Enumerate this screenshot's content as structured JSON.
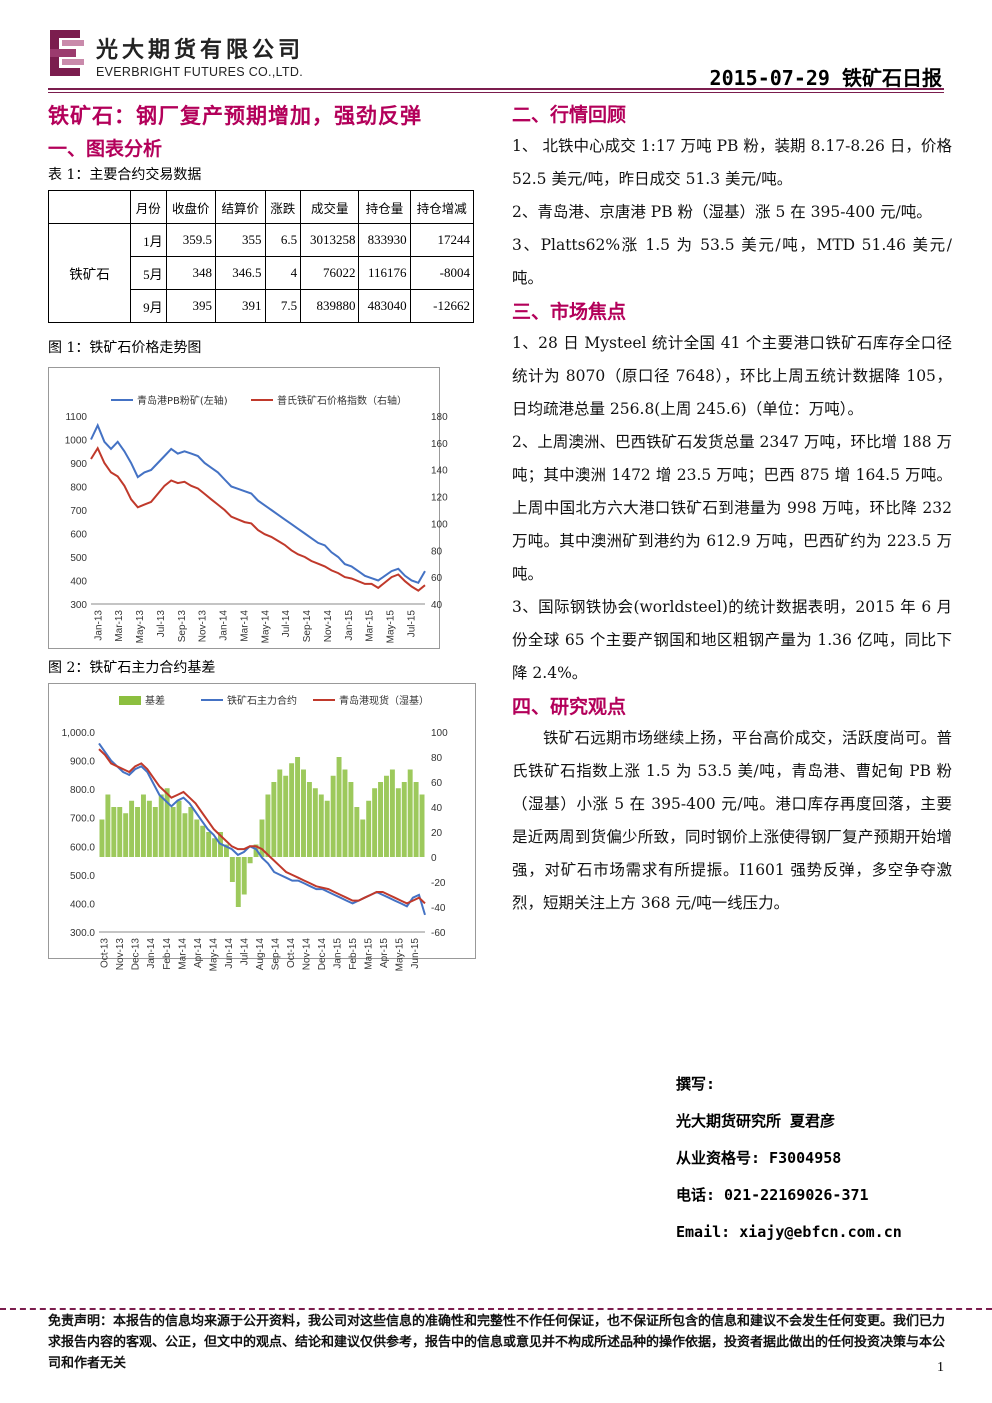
{
  "header": {
    "company_cn": "光大期货有限公司",
    "company_en": "EVERBRIGHT FUTURES CO.,LTD.",
    "date_title": "2015-07-29 铁矿石日报",
    "accent_color": "#7b1d4e"
  },
  "left": {
    "headline": "铁矿石：钢厂复产预期增加，强劲反弹",
    "section1_title": "一、图表分析",
    "table_caption": "表 1：主要合约交易数据",
    "table": {
      "headers": [
        "",
        "月份",
        "收盘价",
        "结算价",
        "涨跌",
        "成交量",
        "持仓量",
        "持仓增减"
      ],
      "commodity": "铁矿石",
      "rows": [
        {
          "month": "1月",
          "close": "359.5",
          "settle": "355",
          "change": "6.5",
          "volume": "3013258",
          "oi": "833930",
          "oi_change": "17244"
        },
        {
          "month": "5月",
          "close": "348",
          "settle": "346.5",
          "change": "4",
          "volume": "76022",
          "oi": "116176",
          "oi_change": "-8004"
        },
        {
          "month": "9月",
          "close": "395",
          "settle": "391",
          "change": "7.5",
          "volume": "839880",
          "oi": "483040",
          "oi_change": "-12662"
        }
      ]
    },
    "fig1_caption": "图 1：铁矿石价格走势图",
    "fig2_caption": "图 2：铁矿石主力合约基差"
  },
  "chart_data": [
    {
      "type": "line",
      "legend": [
        "青岛港PB粉矿(左轴)",
        "普氏铁矿石价格指数（右轴）"
      ],
      "x_ticks": [
        "Jan-13",
        "Mar-13",
        "May-13",
        "Jul-13",
        "Sep-13",
        "Nov-13",
        "Jan-14",
        "Mar-14",
        "May-14",
        "Jul-14",
        "Sep-14",
        "Nov-14",
        "Jan-15",
        "Mar-15",
        "May-15",
        "Jul-15"
      ],
      "y_left_ticks": [
        "1100",
        "1000",
        "900",
        "800",
        "700",
        "600",
        "500",
        "400",
        "300"
      ],
      "y_right_ticks": [
        "180",
        "160",
        "140",
        "120",
        "100",
        "80",
        "60",
        "40"
      ],
      "ylim_left": [
        300,
        1100
      ],
      "ylim_right": [
        40,
        180
      ],
      "series": [
        {
          "name": "青岛港PB粉矿(左轴)",
          "color": "#4472c4",
          "axis": "left",
          "values": [
            1000,
            1060,
            990,
            960,
            990,
            950,
            900,
            840,
            860,
            870,
            900,
            930,
            960,
            940,
            950,
            940,
            930,
            900,
            880,
            860,
            830,
            800,
            790,
            780,
            770,
            740,
            720,
            700,
            680,
            660,
            640,
            620,
            600,
            580,
            560,
            550,
            520,
            500,
            470,
            460,
            440,
            420,
            410,
            400,
            420,
            440,
            450,
            420,
            400,
            390,
            440
          ]
        },
        {
          "name": "普氏铁矿石价格指数（右轴）",
          "color": "#c0392b",
          "axis": "right",
          "values": [
            148,
            156,
            145,
            138,
            135,
            128,
            118,
            112,
            114,
            116,
            122,
            128,
            132,
            130,
            131,
            128,
            126,
            122,
            118,
            114,
            110,
            105,
            103,
            101,
            100,
            95,
            92,
            90,
            87,
            84,
            80,
            77,
            75,
            72,
            70,
            68,
            65,
            63,
            60,
            59,
            57,
            55,
            55,
            52,
            56,
            60,
            62,
            57,
            53,
            50,
            54
          ]
        }
      ]
    },
    {
      "type": "bar",
      "legend": [
        "基差",
        "铁矿石主力合约",
        "青岛港现货（湿基）"
      ],
      "x_ticks": [
        "Oct-13",
        "Nov-13",
        "Dec-13",
        "Jan-14",
        "Feb-14",
        "Mar-14",
        "Apr-14",
        "May-14",
        "Jun-14",
        "Jul-14",
        "Aug-14",
        "Sep-14",
        "Oct-14",
        "Nov-14",
        "Dec-14",
        "Jan-15",
        "Feb-15",
        "Mar-15",
        "Apr-15",
        "May-15",
        "Jun-15"
      ],
      "y_left_ticks": [
        "1,000.0",
        "900.0",
        "800.0",
        "700.0",
        "600.0",
        "500.0",
        "400.0",
        "300.0"
      ],
      "y_right_ticks": [
        "100",
        "80",
        "60",
        "40",
        "20",
        "0",
        "-20",
        "-40",
        "-60"
      ],
      "ylim_left": [
        300,
        1000
      ],
      "ylim_right": [
        -60,
        100
      ],
      "series": [
        {
          "name": "基差",
          "color": "#8cbf3f",
          "axis": "right",
          "values": [
            30,
            50,
            40,
            40,
            35,
            45,
            40,
            50,
            45,
            40,
            50,
            55,
            40,
            45,
            35,
            40,
            30,
            25,
            20,
            15,
            20,
            10,
            -20,
            -40,
            -30,
            -5,
            10,
            30,
            50,
            60,
            70,
            65,
            75,
            80,
            70,
            60,
            55,
            50,
            45,
            65,
            80,
            70,
            60,
            40,
            30,
            45,
            55,
            60,
            65,
            70,
            55,
            60,
            70,
            60,
            50
          ]
        },
        {
          "name": "铁矿石主力合约",
          "color": "#4472c4",
          "axis": "left",
          "values": [
            960,
            930,
            900,
            880,
            860,
            850,
            870,
            880,
            860,
            820,
            780,
            760,
            740,
            760,
            770,
            750,
            720,
            690,
            660,
            640,
            610,
            600,
            590,
            570,
            580,
            600,
            590,
            560,
            540,
            510,
            500,
            490,
            480,
            480,
            470,
            460,
            450,
            450,
            440,
            430,
            420,
            410,
            400,
            410,
            420,
            430,
            440,
            430,
            420,
            410,
            400,
            390,
            420,
            430,
            360
          ]
        },
        {
          "name": "青岛港现货（湿基）",
          "color": "#c0392b",
          "axis": "left",
          "values": [
            940,
            920,
            890,
            880,
            870,
            860,
            880,
            890,
            870,
            840,
            810,
            790,
            770,
            780,
            790,
            770,
            750,
            720,
            690,
            660,
            640,
            620,
            600,
            590,
            590,
            600,
            600,
            590,
            570,
            550,
            530,
            510,
            500,
            490,
            480,
            470,
            460,
            455,
            450,
            440,
            430,
            420,
            410,
            410,
            420,
            430,
            440,
            440,
            430,
            420,
            410,
            400,
            410,
            420,
            400
          ]
        }
      ]
    }
  ],
  "right": {
    "section2_title": "二、行情回顾",
    "review": [
      "1、 北铁中心成交 1:17 万吨 PB 粉，装期 8.17-8.26 日，价格 52.5 美元/吨，昨日成交 51.3 美元/吨。",
      "2、青岛港、京唐港 PB 粉（湿基）涨 5 在 395-400 元/吨。",
      "3、Platts62%涨 1.5 为 53.5 美元/吨，MTD 51.46 美元/吨。"
    ],
    "section3_title": "三、市场焦点",
    "focus": [
      "1、28 日 Mysteel 统计全国 41 个主要港口铁矿石库存全口径统计为 8070（原口径 7648），环比上周五统计数据降 105，日均疏港总量 256.8(上周 245.6)（单位：万吨）。",
      "2、上周澳洲、巴西铁矿石发货总量 2347 万吨，环比增 188 万吨；其中澳洲 1472 增 23.5 万吨；巴西 875 增 164.5 万吨。上周中国北方六大港口铁矿石到港量为 998 万吨，环比降 232 万吨。其中澳洲矿到港约为 612.9 万吨，巴西矿约为 223.5 万吨。",
      "3、国际钢铁协会(worldsteel)的统计数据表明，2015 年 6 月份全球 65 个主要产钢国和地区粗钢产量为 1.36 亿吨，同比下降 2.4%。"
    ],
    "section4_title": "四、研究观点",
    "view": "铁矿石远期市场继续上扬，平台高价成交，活跃度尚可。普氏铁矿石指数上涨 1.5 为 53.5 美/吨，青岛港、曹妃甸 PB 粉（湿基）小涨 5 在 395-400 元/吨。港口库存再度回落，主要是近两周到货偏少所致，同时钢价上涨使得钢厂复产预期开始增强，对矿石市场需求有所提振。I1601 强势反弹，多空争夺激烈，短期关注上方 368 元/吨一线压力。"
  },
  "author": {
    "label": "撰写:",
    "org": "光大期货研究所 夏君彦",
    "license": "从业资格号: F3004958",
    "phone": "电话: 021-22169026-371",
    "email": "Email: xiajy@ebfcn.com.cn"
  },
  "footer": {
    "disclaimer": "免责声明：本报告的信息均来源于公开资料，我公司对这些信息的准确性和完整性不作任何保证，也不保证所包含的信息和建议不会发生任何变更。我们已力求报告内容的客观、公正，但文中的观点、结论和建议仅供参考，报告中的信息或意见并不构成所述品种的操作依据，投资者据此做出的任何投资决策与本公司和作者无关",
    "page": "1"
  }
}
